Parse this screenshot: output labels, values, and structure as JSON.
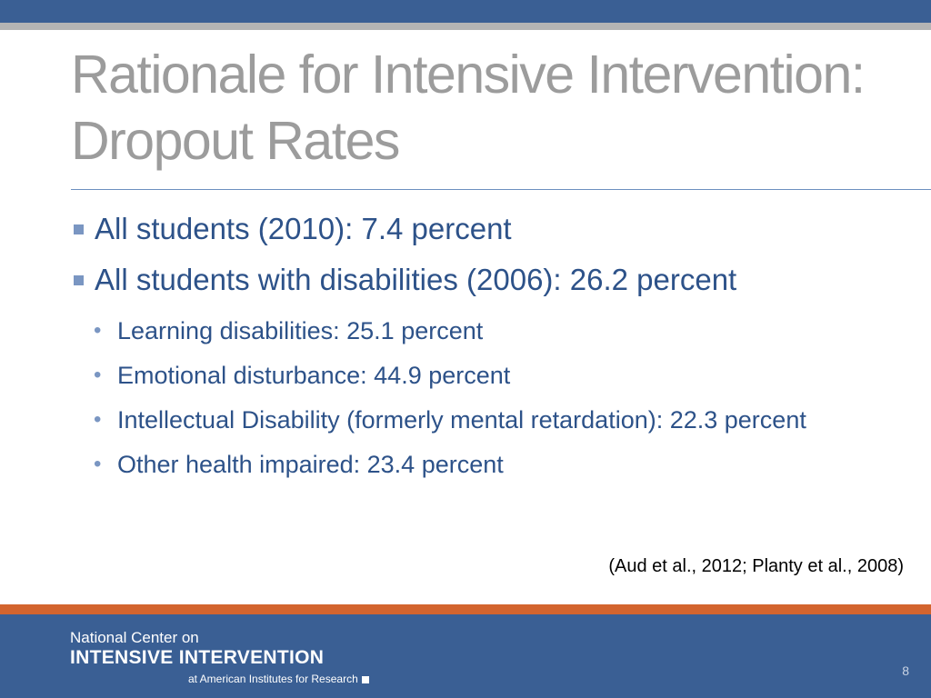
{
  "slide": {
    "title_line1": "Rationale for Intensive Intervention:",
    "title_line2": "Dropout Rates"
  },
  "bullets": [
    {
      "text": "All students (2010): 7.4 percent"
    },
    {
      "text": "All students with disabilities (2006): 26.2 percent"
    }
  ],
  "sub_bullets": [
    {
      "text": "Learning disabilities: 25.1 percent"
    },
    {
      "text": "Emotional disturbance: 44.9 percent"
    },
    {
      "text": "Intellectual Disability (formerly mental retardation): 22.3 percent"
    },
    {
      "text": "Other health impaired: 23.4 percent"
    }
  ],
  "citation": "(Aud et al., 2012; Planty et al., 2008)",
  "footer": {
    "logo_line1": "National Center on",
    "logo_line2": "INTENSIVE INTERVENTION",
    "logo_line3": "at American Institutes for Research",
    "page_number": "8"
  },
  "colors": {
    "header_blue": "#3a5f94",
    "title_gray": "#9c9c9c",
    "text_blue": "#2d5289",
    "accent_orange": "#d3642e"
  }
}
